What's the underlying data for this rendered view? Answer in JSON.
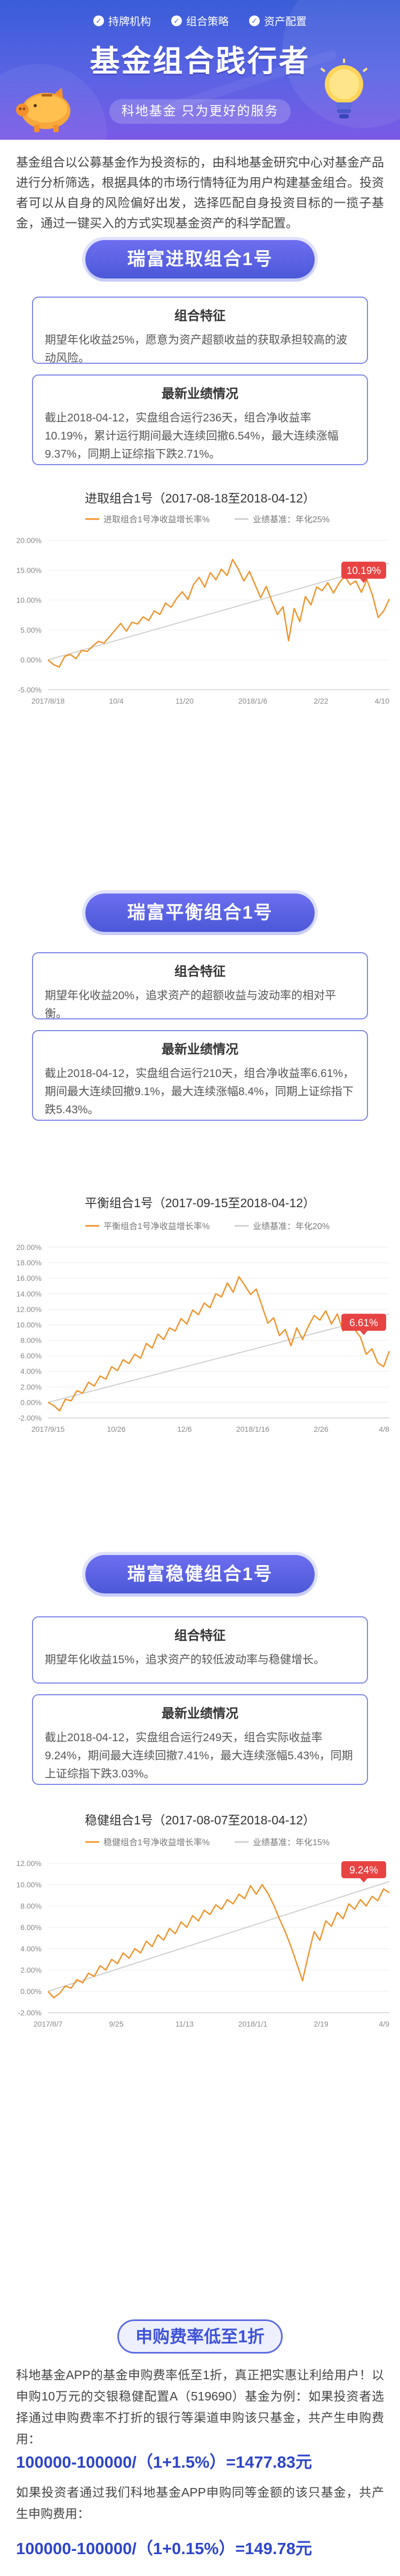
{
  "hero": {
    "tags": [
      "持牌机构",
      "组合策略",
      "资产配置"
    ],
    "title": "基金组合践行者",
    "subtitle": "科地基金  只为更好的服务"
  },
  "intro": "基金组合以公募基金作为投资标的，由科地基金研究中心对基金产品进行分析筛选，根据具体的市场行情特征为用户构建基金组合。投资者可以从自身的风险偏好出发，选择匹配自身投资目标的一揽子基金，通过一键买入的方式实现基金资产的科学配置。",
  "colors": {
    "primary": "#4b58d8",
    "line": "#f0932b",
    "ref": "#cfcfcf",
    "badge": "#e84343"
  },
  "sections": [
    {
      "name": "瑞富进取组合1号",
      "feature_title": "组合特征",
      "feature_text": "期望年化收益25%，愿意为资产超额收益的获取承担较高的波动风险。",
      "perf_title": "最新业绩情况",
      "perf_text": "截止2018-04-12，实盘组合运行236天，组合净收益率10.19%，累计运行期间最大连续回撤6.54%，最大连续涨幅9.37%，同期上证综指下跌2.71%。",
      "chart_title": "进取组合1号（2017-08-18至2018-04-12）"
    },
    {
      "name": "瑞富平衡组合1号",
      "feature_title": "组合特征",
      "feature_text": "期望年化收益20%，追求资产的超额收益与波动率的相对平衡。",
      "perf_title": "最新业绩情况",
      "perf_text": "截止2018-04-12，实盘组合运行210天，组合净收益率6.61%，期间最大连续回撤9.1%，最大连续涨幅8.4%，同期上证综指下跌5.43%。",
      "chart_title": "平衡组合1号（2017-09-15至2018-04-12）"
    },
    {
      "name": "瑞富稳健组合1号",
      "feature_title": "组合特征",
      "feature_text": "期望年化收益15%，追求资产的较低波动率与稳健增长。",
      "perf_title": "最新业绩情况",
      "perf_text": "截止2018-04-12，实盘组合运行249天，组合实际收益率9.24%，期间最大连续回撤7.41%，最大连续涨幅5.43%，同期上证综指下跌3.03%。",
      "chart_title": "稳健组合1号（2017-08-07至2018-04-12）"
    }
  ],
  "chart_data": [
    {
      "type": "line",
      "legend": [
        "进取组合1号净收益增长率%",
        "业绩基准：年化25%"
      ],
      "badge": "10.19%",
      "ylim": [
        -5,
        20
      ],
      "yticks": [
        "20.00%",
        "15.00%",
        "10.00%",
        "5.00%",
        "0.00%",
        "-5.00%"
      ],
      "xticks": [
        "2017/8/18",
        "10/4",
        "11/20",
        "2018/1/6",
        "2/22",
        "4/10"
      ],
      "series": [
        {
          "name": "进取组合1号净收益增长率%",
          "values": [
            0.0,
            -0.8,
            -1.2,
            0.6,
            0.9,
            0.2,
            1.6,
            1.4,
            2.3,
            3.1,
            2.8,
            3.9,
            5.0,
            6.1,
            4.8,
            6.3,
            6.0,
            7.2,
            6.6,
            8.2,
            7.6,
            9.5,
            8.8,
            10.3,
            11.4,
            10.1,
            12.6,
            13.8,
            12.2,
            14.6,
            13.4,
            15.2,
            14.1,
            16.8,
            15.2,
            13.2,
            14.8,
            12.6,
            10.4,
            12.3,
            9.8,
            7.6,
            8.9,
            3.2,
            8.6,
            6.4,
            10.6,
            9.2,
            12.2,
            11.6,
            12.9,
            11.2,
            12.8,
            14.0,
            12.6,
            13.2,
            11.3,
            13.4,
            10.8,
            7.1,
            8.2,
            10.19
          ]
        },
        {
          "name": "业绩基准：年化25%",
          "values": [
            0.0,
            16.2
          ]
        }
      ]
    },
    {
      "type": "line",
      "legend": [
        "平衡组合1号净收益增长率%",
        "业绩基准：年化20%"
      ],
      "badge": "6.61%",
      "ylim": [
        -2,
        20
      ],
      "yticks": [
        "20.00%",
        "18.00%",
        "16.00%",
        "14.00%",
        "12.00%",
        "10.00%",
        "8.00%",
        "6.00%",
        "4.00%",
        "2.00%",
        "0.00%",
        "-2.00%"
      ],
      "xticks": [
        "2017/9/15",
        "10/26",
        "12/6",
        "2018/1/16",
        "2/26",
        "4/8"
      ],
      "series": [
        {
          "name": "平衡组合1号净收益增长率%",
          "values": [
            0.0,
            -0.4,
            -1.1,
            0.4,
            0.2,
            1.5,
            1.2,
            2.6,
            2.1,
            3.4,
            3.0,
            4.6,
            4.1,
            5.5,
            5.0,
            6.2,
            5.7,
            7.6,
            7.0,
            8.8,
            8.1,
            9.6,
            9.2,
            10.8,
            10.1,
            11.9,
            11.3,
            12.8,
            12.2,
            14.0,
            13.6,
            15.4,
            14.2,
            16.2,
            15.1,
            13.9,
            14.6,
            12.4,
            10.2,
            10.9,
            8.6,
            9.4,
            7.3,
            9.6,
            8.1,
            9.8,
            11.2,
            10.6,
            11.8,
            10.1,
            11.4,
            9.2,
            10.6,
            9.4,
            8.4,
            6.2,
            6.9,
            5.1,
            4.6,
            6.61
          ]
        },
        {
          "name": "业绩基准：年化20%",
          "values": [
            0.0,
            11.4
          ]
        }
      ]
    },
    {
      "type": "line",
      "legend": [
        "稳健组合1号净收益增长率%",
        "业绩基准：年化15%"
      ],
      "badge": "9.24%",
      "ylim": [
        -2,
        12
      ],
      "yticks": [
        "12.00%",
        "10.00%",
        "8.00%",
        "6.00%",
        "4.00%",
        "2.00%",
        "0.00%",
        "-2.00%"
      ],
      "xticks": [
        "2017/8/7",
        "9/25",
        "11/13",
        "2018/1/1",
        "2/19",
        "4/9"
      ],
      "series": [
        {
          "name": "稳健组合1号净收益增长率%",
          "values": [
            0.0,
            -0.6,
            -0.2,
            0.5,
            0.3,
            1.1,
            0.8,
            1.7,
            1.4,
            2.4,
            2.0,
            3.0,
            2.6,
            3.6,
            3.1,
            4.0,
            3.6,
            4.7,
            4.2,
            5.3,
            4.8,
            5.9,
            5.4,
            6.5,
            6.0,
            7.1,
            6.6,
            7.6,
            7.2,
            8.1,
            7.7,
            8.6,
            8.2,
            9.1,
            8.7,
            9.9,
            9.1,
            10.0,
            9.2,
            8.1,
            6.8,
            5.6,
            4.2,
            2.6,
            1.0,
            3.4,
            5.6,
            4.8,
            6.6,
            6.1,
            7.4,
            6.8,
            8.2,
            7.7,
            8.6,
            8.0,
            8.9,
            8.5,
            9.6,
            9.24
          ]
        },
        {
          "name": "业绩基准：年化15%",
          "values": [
            0.0,
            10.3
          ]
        }
      ]
    }
  ],
  "fee": {
    "pill": "申购费率低至1折",
    "p1": "科地基金APP的基金申购费率低至1折，真正把实惠让利给用户！以申购10万元的交银稳健配置A（519690）基金为例：如果投资者选择通过申购费率不打折的银行等渠道申购该只基金，共产生申购费用：",
    "f1": "100000-100000/（1+1.5%）=1477.83元",
    "p2": "如果投资者通过我们科地基金APP申购同等金额的该只基金，共产生申购费用：",
    "f2": "100000-100000/（1+0.15%）=149.78元"
  }
}
